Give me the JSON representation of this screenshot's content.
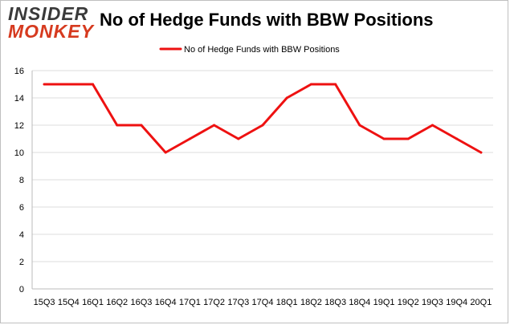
{
  "logo": {
    "line1": "INSIDER",
    "line2": "MONKEY"
  },
  "colors": {
    "series": "#ee1111",
    "grid": "#dddddd",
    "axis": "#bbbbbb",
    "text": "#000000",
    "logo_accent": "#d63a1f"
  },
  "chart_data": {
    "type": "line",
    "title": "No of Hedge Funds with BBW Positions",
    "xlabel": "",
    "ylabel": "",
    "legend": {
      "label": "No of Hedge Funds with BBW Positions",
      "position": "top-center"
    },
    "categories": [
      "15Q3",
      "15Q4",
      "16Q1",
      "16Q2",
      "16Q3",
      "16Q4",
      "17Q1",
      "17Q2",
      "17Q3",
      "17Q4",
      "18Q1",
      "18Q2",
      "18Q3",
      "18Q4",
      "19Q1",
      "19Q2",
      "19Q3",
      "19Q4",
      "20Q1"
    ],
    "series": [
      {
        "name": "No of Hedge Funds with BBW Positions",
        "values": [
          15,
          15,
          15,
          12,
          12,
          10,
          11,
          12,
          11,
          12,
          14,
          15,
          15,
          12,
          11,
          11,
          12,
          11,
          10
        ]
      }
    ],
    "ylim": [
      0,
      16
    ],
    "yticks": [
      0,
      2,
      4,
      6,
      8,
      10,
      12,
      14,
      16
    ],
    "grid": true
  }
}
